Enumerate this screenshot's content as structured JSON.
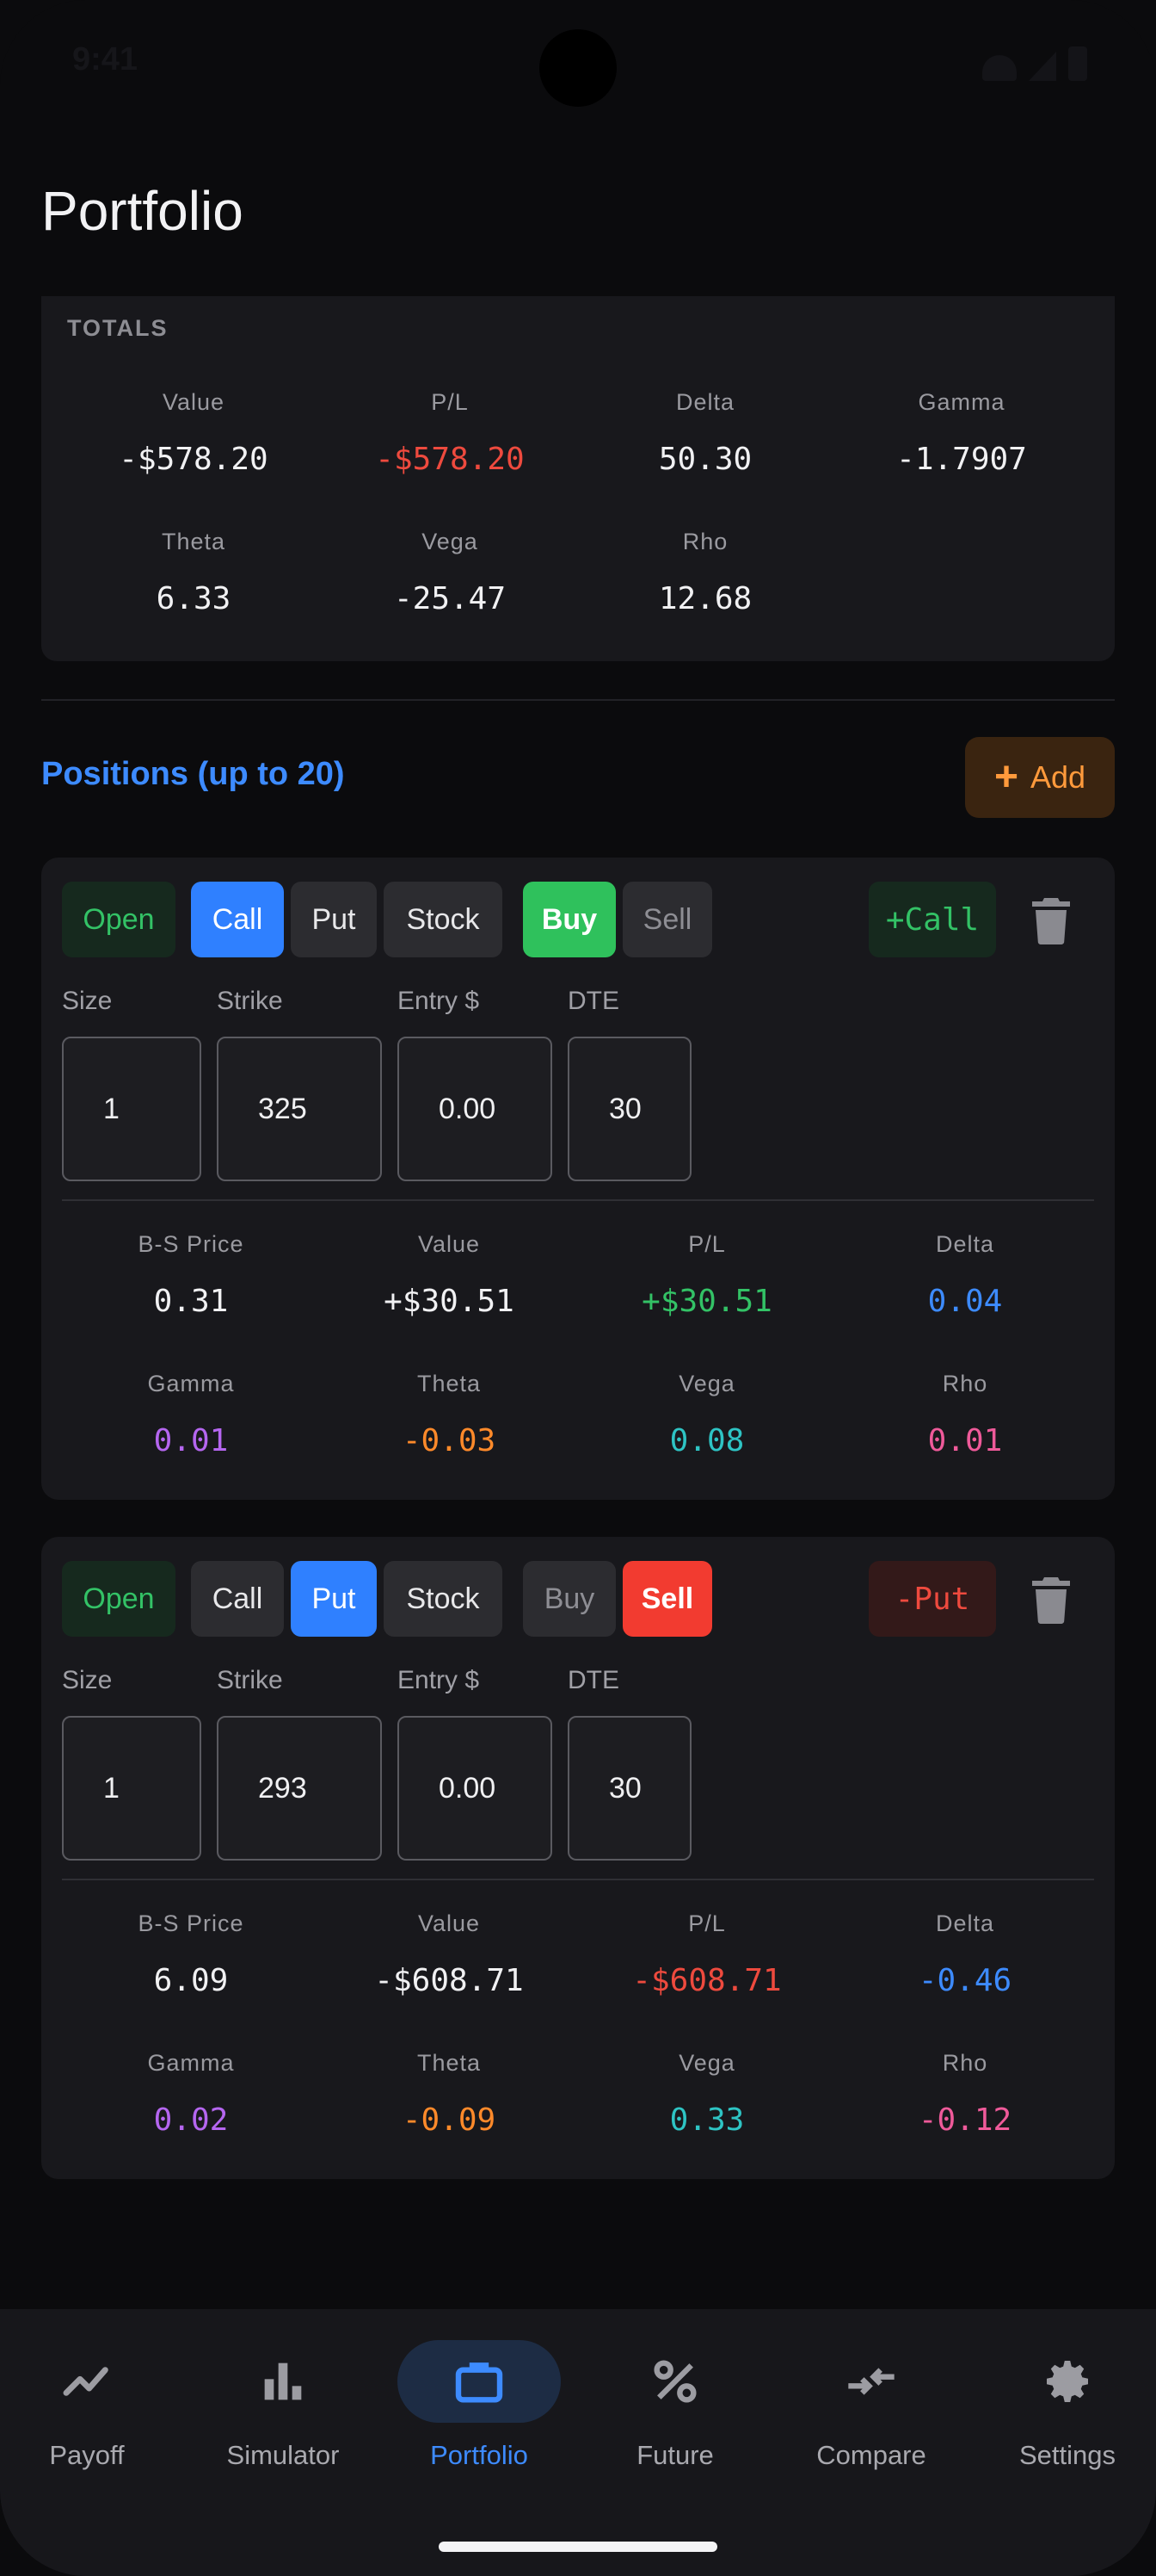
{
  "status_bar": {
    "time": "9:41"
  },
  "page": {
    "title": "Portfolio"
  },
  "totals": {
    "label": "TOTALS",
    "metrics": [
      {
        "key": "Value",
        "value": "-$578.20",
        "color": "#f1f1f3"
      },
      {
        "key": "P/L",
        "value": "-$578.20",
        "color": "#ee4a3e"
      },
      {
        "key": "Delta",
        "value": "50.30",
        "color": "#f1f1f3"
      },
      {
        "key": "Gamma",
        "value": "-1.7907",
        "color": "#f1f1f3"
      },
      {
        "key": "Theta",
        "value": "6.33",
        "color": "#f1f1f3"
      },
      {
        "key": "Vega",
        "value": "-25.47",
        "color": "#f1f1f3"
      },
      {
        "key": "Rho",
        "value": "12.68",
        "color": "#f1f1f3"
      }
    ]
  },
  "positions": {
    "title": "Positions (up to 20)",
    "add_label": "Add",
    "items": [
      {
        "status": "Open",
        "type_options": [
          "Call",
          "Put",
          "Stock"
        ],
        "selected_type": "Call",
        "side_options": [
          "Buy",
          "Sell"
        ],
        "selected_side": "Buy",
        "badge": "+Call",
        "fields": [
          {
            "label": "Size",
            "value": "1"
          },
          {
            "label": "Strike",
            "value": "325"
          },
          {
            "label": "Entry $",
            "value": "0.00"
          },
          {
            "label": "DTE",
            "value": "30"
          }
        ],
        "metrics": [
          {
            "key": "B-S Price",
            "value": "0.31",
            "color": "#f1f1f3"
          },
          {
            "key": "Value",
            "value": "+$30.51",
            "color": "#f1f1f3"
          },
          {
            "key": "P/L",
            "value": "+$30.51",
            "color": "#33c266"
          },
          {
            "key": "Delta",
            "value": "0.04",
            "color": "#3d8bff"
          },
          {
            "key": "Gamma",
            "value": "0.01",
            "color": "#b566f0"
          },
          {
            "key": "Theta",
            "value": "-0.03",
            "color": "#ff8a2a"
          },
          {
            "key": "Vega",
            "value": "0.08",
            "color": "#2ec4c4"
          },
          {
            "key": "Rho",
            "value": "0.01",
            "color": "#ef5a9a"
          }
        ]
      },
      {
        "status": "Open",
        "type_options": [
          "Call",
          "Put",
          "Stock"
        ],
        "selected_type": "Put",
        "side_options": [
          "Buy",
          "Sell"
        ],
        "selected_side": "Sell",
        "badge": "-Put",
        "fields": [
          {
            "label": "Size",
            "value": "1"
          },
          {
            "label": "Strike",
            "value": "293"
          },
          {
            "label": "Entry $",
            "value": "0.00"
          },
          {
            "label": "DTE",
            "value": "30"
          }
        ],
        "metrics": [
          {
            "key": "B-S Price",
            "value": "6.09",
            "color": "#f1f1f3"
          },
          {
            "key": "Value",
            "value": "-$608.71",
            "color": "#f1f1f3"
          },
          {
            "key": "P/L",
            "value": "-$608.71",
            "color": "#ee4a3e"
          },
          {
            "key": "Delta",
            "value": "-0.46",
            "color": "#3d8bff"
          },
          {
            "key": "Gamma",
            "value": "0.02",
            "color": "#b566f0"
          },
          {
            "key": "Theta",
            "value": "-0.09",
            "color": "#ff8a2a"
          },
          {
            "key": "Vega",
            "value": "0.33",
            "color": "#2ec4c4"
          },
          {
            "key": "Rho",
            "value": "-0.12",
            "color": "#ef5a9a"
          }
        ]
      }
    ]
  },
  "nav": {
    "active": "Portfolio",
    "items": [
      {
        "label": "Payoff",
        "icon": "trending-up-icon"
      },
      {
        "label": "Simulator",
        "icon": "bar-chart-icon"
      },
      {
        "label": "Portfolio",
        "icon": "briefcase-icon"
      },
      {
        "label": "Future",
        "icon": "percent-icon"
      },
      {
        "label": "Compare",
        "icon": "compare-arrows-icon"
      },
      {
        "label": "Settings",
        "icon": "gear-icon"
      }
    ]
  }
}
